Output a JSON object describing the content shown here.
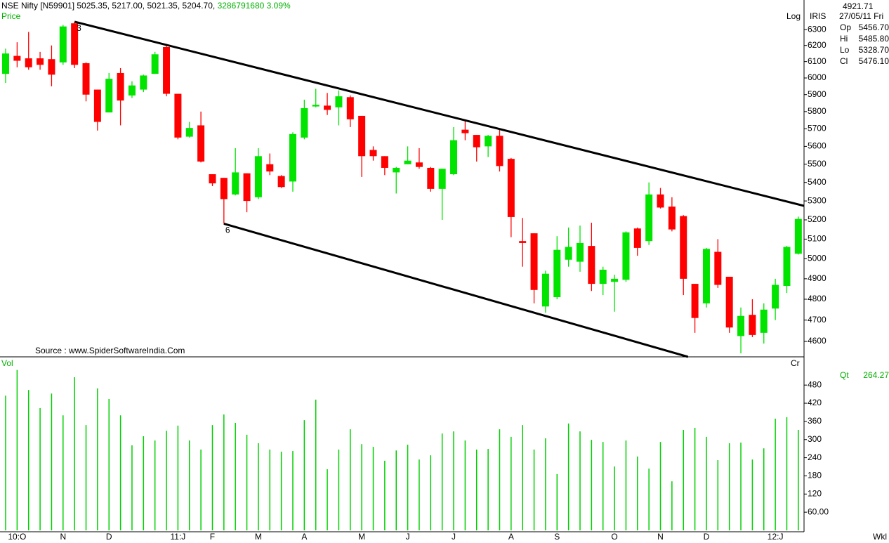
{
  "header": {
    "title": "NSE Nifty [N59901] 5025.35, 5217.00, 5021.35, 5204.70,",
    "volume": "3286791680",
    "change": "3.09%",
    "price_label": "Price",
    "source": "Source : www.SpiderSoftwareIndia.Com",
    "scale_label": "Log",
    "indicator": "IRIS",
    "cursor_value": "4921.71",
    "cursor_date": "27/05/11 Fri",
    "period": "Wkl"
  },
  "ohlc_panel": [
    {
      "label": "Op",
      "value": "5456.70",
      "color": "#00c000"
    },
    {
      "label": "Hi",
      "value": "5485.80",
      "color": "#e00000"
    },
    {
      "label": "Lo",
      "value": "5328.70",
      "color": "#a0a0a0"
    },
    {
      "label": "Cl",
      "value": "5476.10",
      "color": "#a0a0a0"
    }
  ],
  "volume_panel": {
    "label": "Vol",
    "unit": "Cr",
    "qt_label": "Qt",
    "qt_value": "264.27"
  },
  "chart_data": [
    {
      "type": "candlestick",
      "log_scale": true,
      "up_color": "#00e400",
      "down_color": "#ff0000",
      "categories": [
        null,
        "10:O",
        null,
        null,
        null,
        "N",
        null,
        null,
        null,
        "D",
        null,
        null,
        null,
        null,
        null,
        "11:J",
        null,
        null,
        "F",
        null,
        null,
        null,
        "M",
        null,
        null,
        null,
        "A",
        null,
        null,
        null,
        null,
        "M",
        null,
        null,
        null,
        "J",
        null,
        null,
        null,
        "J",
        null,
        null,
        null,
        null,
        "A",
        null,
        null,
        null,
        "S",
        null,
        null,
        null,
        null,
        "O",
        null,
        null,
        null,
        "N",
        null,
        null,
        null,
        "D",
        null,
        null,
        null,
        null,
        null,
        "12:J",
        null,
        null
      ],
      "open": [
        6025,
        6135,
        6120,
        6120,
        6115,
        6095,
        6340,
        6090,
        5930,
        5795,
        6030,
        5895,
        5930,
        6025,
        6190,
        5905,
        5655,
        5720,
        5445,
        5425,
        5335,
        5450,
        5320,
        5500,
        5435,
        5405,
        5650,
        5830,
        5835,
        5825,
        5885,
        5775,
        5580,
        5545,
        5455,
        5500,
        5510,
        5480,
        5365,
        5445,
        5695,
        5665,
        5600,
        5660,
        5530,
        5090,
        5130,
        4765,
        4810,
        4995,
        4985,
        5065,
        4875,
        4885,
        4895,
        5155,
        5090,
        5335,
        5270,
        5220,
        4875,
        4780,
        5035,
        4910,
        4625,
        4725,
        4640,
        4755,
        4865,
        5025.35
      ],
      "high": [
        6180,
        6220,
        6285,
        6160,
        6200,
        6330,
        6350,
        6095,
        5930,
        6030,
        6060,
        5980,
        6020,
        6160,
        6200,
        5905,
        5740,
        5800,
        5445,
        5425,
        5590,
        5450,
        5590,
        5560,
        5440,
        5680,
        5870,
        5935,
        5910,
        5925,
        5895,
        5775,
        5600,
        5545,
        5485,
        5600,
        5590,
        5485,
        5475,
        5710,
        5745,
        5665,
        5665,
        5700,
        5535,
        5210,
        5130,
        4940,
        5115,
        5160,
        5170,
        5185,
        4960,
        4920,
        5140,
        5160,
        5400,
        5370,
        5320,
        5225,
        4875,
        5055,
        5100,
        4910,
        4760,
        4800,
        4780,
        4900,
        5065,
        5217
      ],
      "low": [
        5970,
        6065,
        6050,
        6050,
        5950,
        6080,
        6060,
        5860,
        5690,
        5795,
        5720,
        5880,
        5915,
        6025,
        5890,
        5640,
        5650,
        5510,
        5380,
        5180,
        5330,
        5240,
        5310,
        5440,
        5370,
        5350,
        5640,
        5825,
        5780,
        5720,
        5710,
        5430,
        5520,
        5440,
        5340,
        5500,
        5475,
        5350,
        5200,
        5440,
        5635,
        5515,
        5540,
        5460,
        5110,
        4960,
        4780,
        4735,
        4800,
        4960,
        4935,
        4840,
        4820,
        4740,
        4885,
        5015,
        5070,
        5260,
        5140,
        4820,
        4640,
        4760,
        4855,
        4640,
        4545,
        4620,
        4590,
        4700,
        4830,
        5021.35
      ],
      "close": [
        6150,
        6105,
        6065,
        6080,
        6020,
        6320,
        6080,
        5900,
        5740,
        5995,
        5865,
        5955,
        6015,
        6145,
        5905,
        5650,
        5705,
        5515,
        5395,
        5310,
        5455,
        5300,
        5545,
        5460,
        5375,
        5670,
        5820,
        5840,
        5810,
        5890,
        5755,
        5545,
        5545,
        5480,
        5480,
        5520,
        5485,
        5365,
        5475,
        5635,
        5675,
        5595,
        5660,
        5490,
        5215,
        5080,
        4845,
        4925,
        5045,
        5060,
        5080,
        4875,
        4945,
        4900,
        5135,
        5055,
        5335,
        5265,
        5150,
        4900,
        4710,
        5050,
        4870,
        4665,
        4720,
        4630,
        4750,
        4870,
        5060,
        5204.7
      ],
      "ylim": [
        4529,
        6445
      ],
      "yticks": [
        4600,
        4700,
        4800,
        4900,
        5000,
        5100,
        5200,
        5300,
        5400,
        5500,
        5600,
        5700,
        5800,
        5900,
        6000,
        6100,
        6200,
        6300
      ],
      "trendlines": [
        {
          "start": {
            "index": 6,
            "value": 6350
          },
          "end": {
            "index": 69.5,
            "value": 5274
          }
        },
        {
          "start": {
            "index": 19,
            "value": 5180
          },
          "end": {
            "index": 59.4,
            "value": 4529
          }
        }
      ],
      "annotations": [
        {
          "text": "3",
          "index": 6,
          "at": "high"
        },
        {
          "text": "6",
          "index": 19,
          "at": "low"
        }
      ]
    },
    {
      "type": "bar",
      "color": "#00d000",
      "values": [
        445,
        530,
        464,
        404,
        452,
        380,
        506,
        348,
        469,
        434,
        380,
        281,
        311,
        297,
        329,
        346,
        297,
        267,
        348,
        383,
        355,
        316,
        288,
        267,
        260,
        262,
        364,
        432,
        202,
        267,
        334,
        285,
        276,
        230,
        264,
        283,
        234,
        248,
        320,
        327,
        297,
        267,
        269,
        334,
        309,
        348,
        267,
        304,
        186,
        353,
        327,
        299,
        292,
        211,
        297,
        244,
        204,
        292,
        162,
        332,
        339,
        309,
        232,
        288,
        290,
        234,
        271,
        369,
        374,
        332
      ],
      "ylim": [
        0,
        564
      ],
      "yticks": [
        {
          "value": 60,
          "label": "60.00"
        },
        120,
        180,
        240,
        300,
        360,
        420,
        480
      ]
    }
  ]
}
